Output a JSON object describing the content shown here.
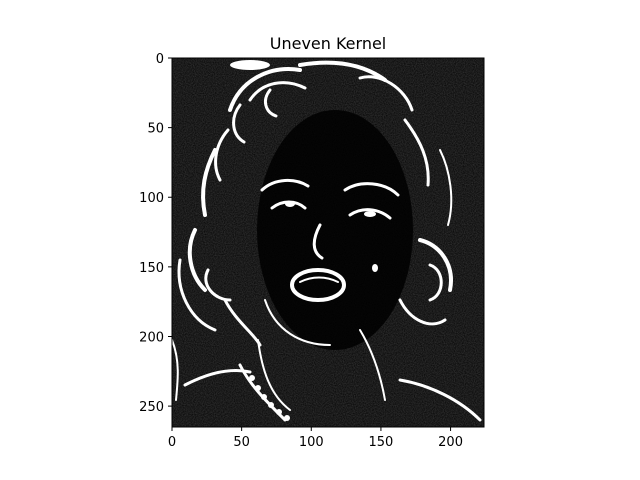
{
  "chart_data": {
    "type": "heatmap",
    "title": "Uneven Kernel",
    "xlabel": "",
    "ylabel": "",
    "xlim": [
      0,
      224
    ],
    "ylim": [
      265,
      0
    ],
    "image_width": 224,
    "image_height": 265,
    "colormap": "gray",
    "content": "edge-filtered grayscale portrait of a woman with curled hair",
    "x_ticks": [
      0,
      50,
      100,
      150,
      200
    ],
    "y_ticks": [
      0,
      50,
      100,
      150,
      200,
      250
    ],
    "x_tick_labels": [
      "0",
      "50",
      "100",
      "150",
      "200"
    ],
    "y_tick_labels": [
      "0",
      "50",
      "100",
      "150",
      "200",
      "250"
    ],
    "grid": false
  }
}
